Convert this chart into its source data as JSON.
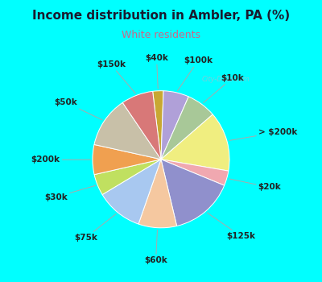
{
  "title": "Income distribution in Ambler, PA (%)",
  "subtitle": "White residents",
  "fig_bg": "#00FFFF",
  "chart_bg_color": "#e8f5ee",
  "labels": [
    "$40k",
    "$100k",
    "$10k",
    "> $200k",
    "$20k",
    "$125k",
    "$60k",
    "$75k",
    "$30k",
    "$200k",
    "$50k",
    "$150k"
  ],
  "values": [
    2.5,
    6,
    7,
    14,
    3.5,
    15,
    9,
    11,
    5,
    7,
    12,
    7.5
  ],
  "colors": [
    "#c8a832",
    "#b0a0d8",
    "#a8c898",
    "#f0ee80",
    "#f0a8b0",
    "#9090cc",
    "#f5c8a0",
    "#a8c8f0",
    "#c0e060",
    "#f0a050",
    "#c8c0a8",
    "#d87878"
  ],
  "title_fontsize": 11,
  "subtitle_fontsize": 9,
  "label_fontsize": 7.5,
  "watermark": "City-Data.com"
}
